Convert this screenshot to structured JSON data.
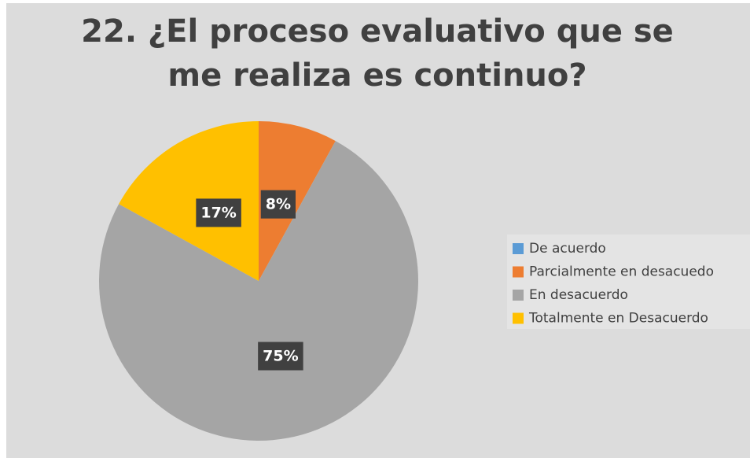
{
  "chart_data": {
    "type": "pie",
    "title": "22. ¿El proceso evaluativo que se me realiza es continuo?",
    "categories": [
      "De acuerdo",
      "Parcialmente en desacuedo",
      "En desacuerdo",
      "Totalmente en Desacuerdo"
    ],
    "values": [
      0,
      8,
      75,
      17
    ],
    "value_labels": [
      null,
      "8%",
      "75%",
      "17%"
    ],
    "colors": [
      "#5b9bd5",
      "#ed7d31",
      "#a5a5a5",
      "#ffc000"
    ],
    "legend": "right"
  }
}
